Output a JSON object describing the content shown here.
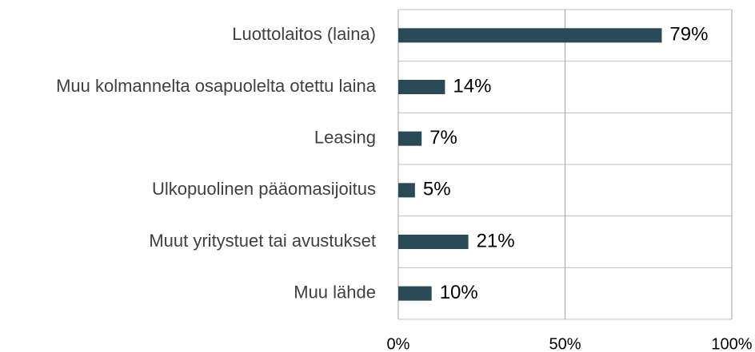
{
  "chart_data": {
    "type": "bar",
    "orientation": "horizontal",
    "categories": [
      "Luottolaitos (laina)",
      "Muu kolmannelta osapuolelta otettu laina",
      "Leasing",
      "Ulkopuolinen pääomasijoitus",
      "Muut yritystuet tai avustukset",
      "Muu lähde"
    ],
    "values": [
      79,
      14,
      7,
      5,
      21,
      10
    ],
    "value_labels": [
      "79%",
      "14%",
      "7%",
      "5%",
      "21%",
      "10%"
    ],
    "color": "#2b4a57",
    "xlim": [
      0,
      100
    ],
    "xticks": [
      {
        "value": 0,
        "label": "0%"
      },
      {
        "value": 50,
        "label": "50%"
      },
      {
        "value": 100,
        "label": "100%"
      }
    ],
    "grid": true
  }
}
